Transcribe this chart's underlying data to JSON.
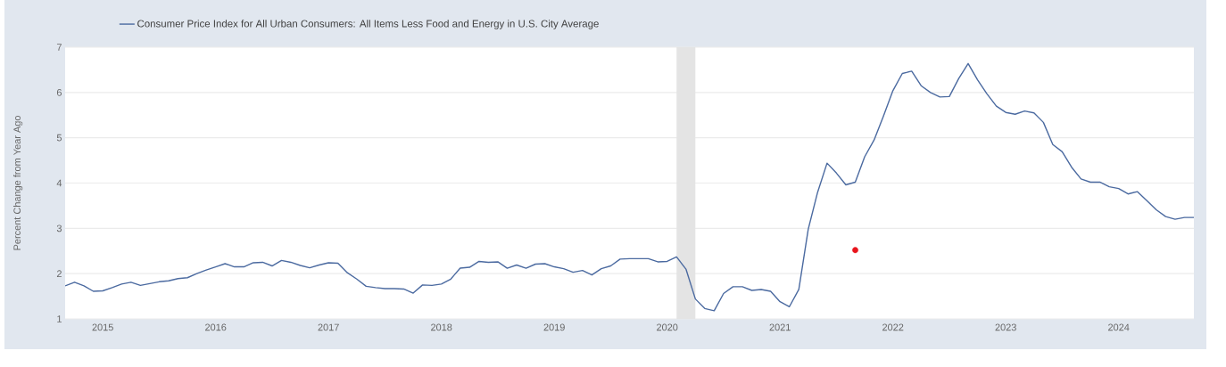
{
  "chart_data": {
    "type": "line",
    "ylabel": "Percent Change from Year Ago",
    "x": [
      "2014-09",
      "2014-10",
      "2014-11",
      "2014-12",
      "2015-01",
      "2015-02",
      "2015-03",
      "2015-04",
      "2015-05",
      "2015-06",
      "2015-07",
      "2015-08",
      "2015-09",
      "2015-10",
      "2015-11",
      "2015-12",
      "2016-01",
      "2016-02",
      "2016-03",
      "2016-04",
      "2016-05",
      "2016-06",
      "2016-07",
      "2016-08",
      "2016-09",
      "2016-10",
      "2016-11",
      "2016-12",
      "2017-01",
      "2017-02",
      "2017-03",
      "2017-04",
      "2017-05",
      "2017-06",
      "2017-07",
      "2017-08",
      "2017-09",
      "2017-10",
      "2017-11",
      "2017-12",
      "2018-01",
      "2018-02",
      "2018-03",
      "2018-04",
      "2018-05",
      "2018-06",
      "2018-07",
      "2018-08",
      "2018-09",
      "2018-10",
      "2018-11",
      "2018-12",
      "2019-01",
      "2019-02",
      "2019-03",
      "2019-04",
      "2019-05",
      "2019-06",
      "2019-07",
      "2019-08",
      "2019-09",
      "2019-10",
      "2019-11",
      "2019-12",
      "2020-01",
      "2020-02",
      "2020-03",
      "2020-04",
      "2020-05",
      "2020-06",
      "2020-07",
      "2020-08",
      "2020-09",
      "2020-10",
      "2020-11",
      "2020-12",
      "2021-01",
      "2021-02",
      "2021-03",
      "2021-04",
      "2021-05",
      "2021-06",
      "2021-07",
      "2021-08",
      "2021-09",
      "2021-10",
      "2021-11",
      "2021-12",
      "2022-01",
      "2022-02",
      "2022-03",
      "2022-04",
      "2022-05",
      "2022-06",
      "2022-07",
      "2022-08",
      "2022-09",
      "2022-10",
      "2022-11",
      "2022-12",
      "2023-01",
      "2023-02",
      "2023-03",
      "2023-04",
      "2023-05",
      "2023-06",
      "2023-07",
      "2023-08",
      "2023-09",
      "2023-10",
      "2023-11",
      "2023-12",
      "2024-01",
      "2024-02",
      "2024-03",
      "2024-04",
      "2024-05",
      "2024-06",
      "2024-07",
      "2024-08",
      "2024-09"
    ],
    "series": [
      {
        "name": "Consumer Price Index for All Urban Consumers: All Items Less Food and Energy in U.S. City Average",
        "color": "#4b6aa0",
        "values": [
          1.73,
          1.81,
          1.73,
          1.61,
          1.62,
          1.69,
          1.77,
          1.81,
          1.74,
          1.78,
          1.82,
          1.84,
          1.89,
          1.91,
          2.0,
          2.08,
          2.15,
          2.22,
          2.15,
          2.15,
          2.24,
          2.25,
          2.17,
          2.29,
          2.25,
          2.18,
          2.13,
          2.19,
          2.24,
          2.23,
          2.02,
          1.88,
          1.72,
          1.69,
          1.67,
          1.67,
          1.66,
          1.57,
          1.75,
          1.74,
          1.77,
          1.88,
          2.12,
          2.14,
          2.27,
          2.25,
          2.26,
          2.12,
          2.19,
          2.12,
          2.21,
          2.22,
          2.15,
          2.11,
          2.03,
          2.07,
          1.97,
          2.11,
          2.17,
          2.32,
          2.33,
          2.33,
          2.33,
          2.26,
          2.27,
          2.37,
          2.1,
          1.44,
          1.23,
          1.18,
          1.56,
          1.71,
          1.71,
          1.63,
          1.65,
          1.61,
          1.38,
          1.27,
          1.65,
          2.98,
          3.8,
          4.44,
          4.22,
          3.96,
          4.02,
          4.58,
          4.95,
          5.48,
          6.04,
          6.42,
          6.47,
          6.15,
          6.0,
          5.9,
          5.91,
          6.31,
          6.64,
          6.28,
          5.97,
          5.7,
          5.56,
          5.52,
          5.59,
          5.55,
          5.34,
          4.85,
          4.69,
          4.35,
          4.09,
          4.02,
          4.02,
          3.92,
          3.88,
          3.76,
          3.81,
          3.61,
          3.41,
          3.26,
          3.2,
          3.24,
          3.24
        ]
      },
      {
        "type": "scatter",
        "marker": "circle",
        "color": "#e8141c",
        "x": [
          "2021-09"
        ],
        "values": [
          2.52
        ]
      }
    ],
    "xlim": [
      "2014-09",
      "2024-09"
    ],
    "xticks": [
      "2015",
      "2016",
      "2017",
      "2018",
      "2019",
      "2020",
      "2021",
      "2022",
      "2023",
      "2024"
    ],
    "ylim": [
      1,
      7
    ],
    "yticks": [
      1,
      2,
      3,
      4,
      5,
      6,
      7
    ],
    "bands": [
      {
        "axis": "x",
        "from": "2020-02",
        "to": "2020-04",
        "color": "#e4e4e4"
      }
    ],
    "grid": "y",
    "legend": "top left",
    "marker": "none",
    "line_style": "solid"
  }
}
